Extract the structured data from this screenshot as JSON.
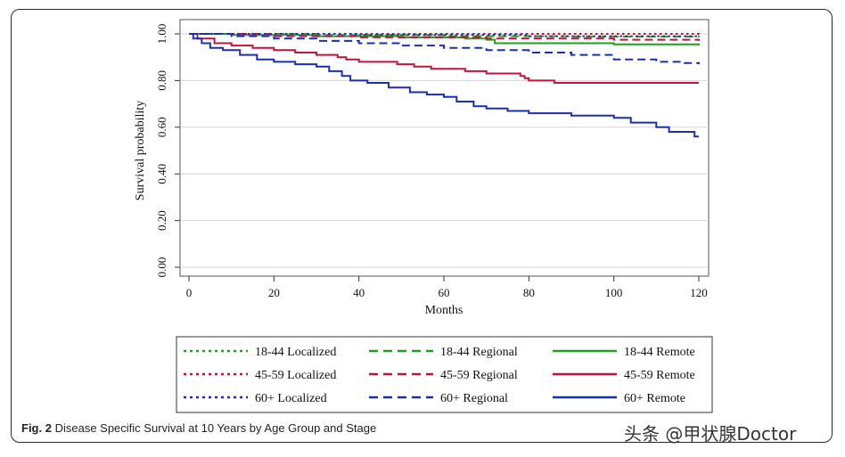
{
  "caption": {
    "label": "Fig. 2",
    "text": "Disease Specific Survival at 10 Years by Age Group and Stage"
  },
  "watermark": "头条 @甲状腺Doctor",
  "chart_data": {
    "type": "line",
    "subtype": "kaplan-meier step",
    "xlabel": "Months",
    "ylabel": "Survival probability",
    "xlim": [
      0,
      120
    ],
    "ylim": [
      0,
      1
    ],
    "xticks": [
      0,
      20,
      40,
      60,
      80,
      100,
      120
    ],
    "yticks": [
      "0.00",
      "0.20",
      "0.40",
      "0.60",
      "0.80",
      "1.00"
    ],
    "grid": "horizontal",
    "legend_position": "bottom",
    "legend_columns": 3,
    "series": [
      {
        "name": "18-44 Localized",
        "color": "#1aa31a",
        "dash": "dotted",
        "points": [
          [
            0,
            1.0
          ],
          [
            120,
            0.998
          ]
        ]
      },
      {
        "name": "18-44 Regional",
        "color": "#1aa31a",
        "dash": "dashed",
        "points": [
          [
            0,
            1.0
          ],
          [
            30,
            0.995
          ],
          [
            60,
            0.99
          ],
          [
            90,
            0.988
          ],
          [
            120,
            0.985
          ]
        ]
      },
      {
        "name": "18-44 Remote",
        "color": "#1aa31a",
        "dash": "solid",
        "points": [
          [
            0,
            1.0
          ],
          [
            10,
            0.995
          ],
          [
            30,
            0.99
          ],
          [
            50,
            0.985
          ],
          [
            65,
            0.98
          ],
          [
            70,
            0.975
          ],
          [
            72,
            0.96
          ],
          [
            90,
            0.96
          ],
          [
            100,
            0.955
          ],
          [
            120,
            0.95
          ]
        ]
      },
      {
        "name": "45-59 Localized",
        "color": "#c0143c",
        "dash": "dotted",
        "points": [
          [
            0,
            1.0
          ],
          [
            120,
            0.995
          ]
        ]
      },
      {
        "name": "45-59 Regional",
        "color": "#c0143c",
        "dash": "dashed",
        "points": [
          [
            0,
            1.0
          ],
          [
            20,
            0.99
          ],
          [
            40,
            0.985
          ],
          [
            70,
            0.98
          ],
          [
            100,
            0.975
          ],
          [
            120,
            0.97
          ]
        ]
      },
      {
        "name": "45-59 Remote",
        "color": "#c0143c",
        "dash": "solid",
        "points": [
          [
            0,
            1.0
          ],
          [
            2,
            0.98
          ],
          [
            6,
            0.96
          ],
          [
            10,
            0.95
          ],
          [
            15,
            0.94
          ],
          [
            20,
            0.93
          ],
          [
            25,
            0.92
          ],
          [
            30,
            0.91
          ],
          [
            35,
            0.9
          ],
          [
            37,
            0.89
          ],
          [
            40,
            0.88
          ],
          [
            49,
            0.87
          ],
          [
            53,
            0.86
          ],
          [
            57,
            0.85
          ],
          [
            65,
            0.84
          ],
          [
            70,
            0.83
          ],
          [
            78,
            0.82
          ],
          [
            79,
            0.81
          ],
          [
            80,
            0.8
          ],
          [
            86,
            0.79
          ],
          [
            120,
            0.79
          ]
        ]
      },
      {
        "name": "60+ Localized",
        "color": "#1a2faf",
        "dash": "dotted",
        "points": [
          [
            0,
            1.0
          ],
          [
            40,
            0.995
          ],
          [
            80,
            0.99
          ],
          [
            120,
            0.985
          ]
        ]
      },
      {
        "name": "60+ Regional",
        "color": "#1a2faf",
        "dash": "dashed",
        "points": [
          [
            0,
            1.0
          ],
          [
            10,
            0.99
          ],
          [
            20,
            0.98
          ],
          [
            30,
            0.97
          ],
          [
            40,
            0.96
          ],
          [
            50,
            0.95
          ],
          [
            60,
            0.94
          ],
          [
            70,
            0.93
          ],
          [
            80,
            0.92
          ],
          [
            90,
            0.91
          ],
          [
            100,
            0.89
          ],
          [
            110,
            0.88
          ],
          [
            116,
            0.875
          ],
          [
            120,
            0.87
          ]
        ]
      },
      {
        "name": "60+ Remote",
        "color": "#1a2faf",
        "dash": "solid",
        "points": [
          [
            0,
            1.0
          ],
          [
            1,
            0.98
          ],
          [
            3,
            0.96
          ],
          [
            5,
            0.94
          ],
          [
            8,
            0.93
          ],
          [
            12,
            0.91
          ],
          [
            16,
            0.89
          ],
          [
            20,
            0.88
          ],
          [
            25,
            0.87
          ],
          [
            30,
            0.86
          ],
          [
            33,
            0.84
          ],
          [
            36,
            0.82
          ],
          [
            38,
            0.8
          ],
          [
            42,
            0.79
          ],
          [
            47,
            0.77
          ],
          [
            52,
            0.75
          ],
          [
            56,
            0.74
          ],
          [
            60,
            0.73
          ],
          [
            63,
            0.71
          ],
          [
            67,
            0.69
          ],
          [
            70,
            0.68
          ],
          [
            75,
            0.67
          ],
          [
            80,
            0.66
          ],
          [
            90,
            0.65
          ],
          [
            100,
            0.64
          ],
          [
            104,
            0.62
          ],
          [
            110,
            0.6
          ],
          [
            113,
            0.58
          ],
          [
            119,
            0.56
          ],
          [
            120,
            0.56
          ]
        ]
      }
    ]
  }
}
